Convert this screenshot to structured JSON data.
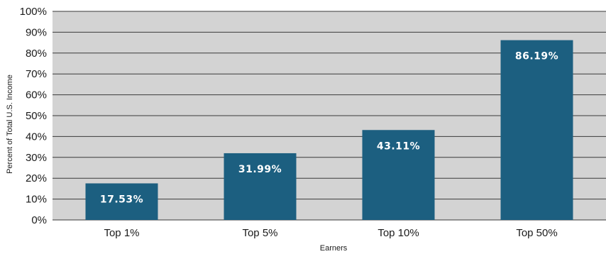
{
  "chart_data": {
    "type": "bar",
    "categories": [
      "Top 1%",
      "Top 5%",
      "Top 10%",
      "Top 50%"
    ],
    "values": [
      17.53,
      31.99,
      43.11,
      86.19
    ],
    "data_labels": [
      "17.53%",
      "31.99%",
      "43.11%",
      "86.19%"
    ],
    "title": "",
    "xlabel": "Earners",
    "ylabel": "Percent of Total U.S. Income",
    "ylim": [
      0,
      100
    ],
    "yticks": [
      "0%",
      "10%",
      "20%",
      "30%",
      "40%",
      "50%",
      "60%",
      "70%",
      "80%",
      "90%",
      "100%"
    ],
    "grid": true,
    "colors": {
      "bar": "#1c5f80",
      "plot_background": "#d3d3d3",
      "gridline": "#3a3a3a"
    }
  }
}
